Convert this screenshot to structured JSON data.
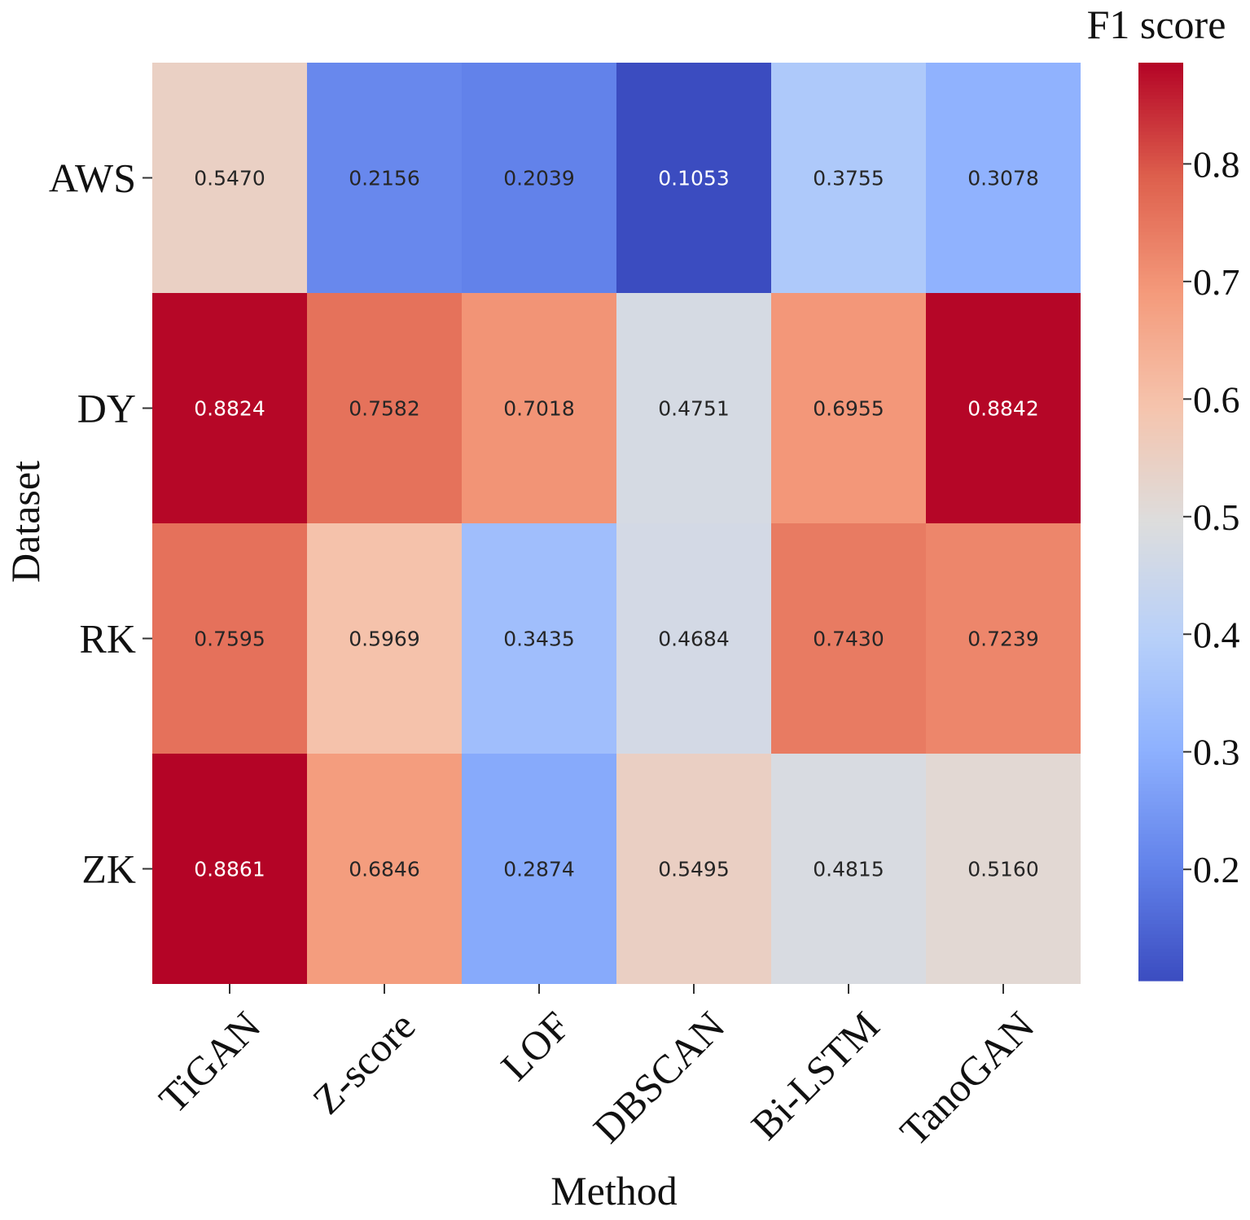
{
  "chart_data": {
    "type": "heatmap",
    "xlabel": "Method",
    "ylabel": "Dataset",
    "x_categories": [
      "TiGAN",
      "Z-score",
      "LOF",
      "DBSCAN",
      "Bi-LSTM",
      "TanoGAN"
    ],
    "y_categories": [
      "AWS",
      "DY",
      "RK",
      "ZK"
    ],
    "values": [
      [
        0.547,
        0.2156,
        0.2039,
        0.1053,
        0.3755,
        0.3078
      ],
      [
        0.8824,
        0.7582,
        0.7018,
        0.4751,
        0.6955,
        0.8842
      ],
      [
        0.7595,
        0.5969,
        0.3435,
        0.4684,
        0.743,
        0.7239
      ],
      [
        0.8861,
        0.6846,
        0.2874,
        0.5495,
        0.4815,
        0.516
      ]
    ],
    "value_labels": [
      [
        "0.5470",
        "0.2156",
        "0.2039",
        "0.1053",
        "0.3755",
        "0.3078"
      ],
      [
        "0.8824",
        "0.7582",
        "0.7018",
        "0.4751",
        "0.6955",
        "0.8842"
      ],
      [
        "0.7595",
        "0.5969",
        "0.3435",
        "0.4684",
        "0.7430",
        "0.7239"
      ],
      [
        "0.8861",
        "0.6846",
        "0.2874",
        "0.5495",
        "0.4815",
        "0.5160"
      ]
    ],
    "colorbar": {
      "label": "F1 score",
      "colormap": "coolwarm",
      "range": [
        0.1053,
        0.8861
      ],
      "ticks": [
        0.2,
        0.3,
        0.4,
        0.5,
        0.6,
        0.7,
        0.8
      ],
      "tick_labels": [
        "0.2",
        "0.3",
        "0.4",
        "0.5",
        "0.6",
        "0.7",
        "0.8"
      ],
      "position": "right"
    }
  }
}
